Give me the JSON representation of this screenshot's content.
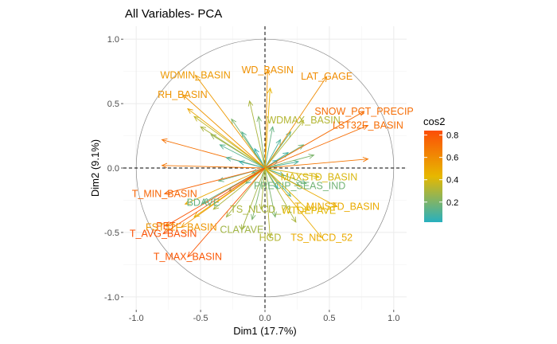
{
  "chart_data": {
    "type": "scatter",
    "title": "All Variables- PCA",
    "xlabel": "Dim1 (17.7%)",
    "ylabel": "Dim2 (9.1%)",
    "xlim": [
      -1.1,
      1.1
    ],
    "ylim": [
      -1.1,
      1.1
    ],
    "x_ticks": [
      "-1.0",
      "-0.5",
      "0.0",
      "0.5",
      "1.0"
    ],
    "y_ticks": [
      "-1.0",
      "-0.5",
      "0.0",
      "0.5",
      "1.0"
    ],
    "grid": true,
    "legend_position": "right",
    "legend": {
      "title": "cos2",
      "ticks": [
        "0.2",
        "0.4",
        "0.6",
        "0.8"
      ],
      "low_color": "#27B0BF",
      "mid_color": "#E7B800",
      "high_color": "#FC4E07"
    },
    "labeled_variables": [
      {
        "name": "WD_BASIN",
        "x": 0.02,
        "y": 0.76,
        "cos2": 0.58
      },
      {
        "name": "WDMIN_BASIN",
        "x": -0.54,
        "y": 0.72,
        "cos2": 0.55
      },
      {
        "name": "LAT_GAGE",
        "x": 0.48,
        "y": 0.71,
        "cos2": 0.6
      },
      {
        "name": "RH_BASIN",
        "x": -0.64,
        "y": 0.57,
        "cos2": 0.57
      },
      {
        "name": "SNOW_PCT_PRECIP",
        "x": 0.77,
        "y": 0.44,
        "cos2": 0.72
      },
      {
        "name": "WDMAX_BASIN",
        "x": 0.3,
        "y": 0.37,
        "cos2": 0.32
      },
      {
        "name": "LST32F_BASIN",
        "x": 0.8,
        "y": 0.33,
        "cos2": 0.72
      },
      {
        "name": "MAXSTD_BASIN",
        "x": 0.42,
        "y": -0.07,
        "cos2": 0.4
      },
      {
        "name": "T_MIN_BASIN",
        "x": -0.78,
        "y": -0.2,
        "cos2": 0.75
      },
      {
        "name": "PRECIP_SEAS_IND",
        "x": 0.27,
        "y": -0.14,
        "cos2": 0.18
      },
      {
        "name": "BDAVE",
        "x": -0.48,
        "y": -0.27,
        "cos2": 0.15
      },
      {
        "name": "T_MINSTD_BASIN",
        "x": 0.56,
        "y": -0.3,
        "cos2": 0.48
      },
      {
        "name": "TS_NLCD_71",
        "x": -0.03,
        "y": -0.32,
        "cos2": 0.3
      },
      {
        "name": "WTDEPAVE",
        "x": 0.34,
        "y": -0.33,
        "cos2": 0.42
      },
      {
        "name": "PET",
        "x": -0.77,
        "y": -0.45,
        "cos2": 0.81
      },
      {
        "name": "FST32F_BASIN",
        "x": -0.65,
        "y": -0.46,
        "cos2": 0.56
      },
      {
        "name": "T_AVG_BASIN",
        "x": -0.79,
        "y": -0.51,
        "cos2": 0.82
      },
      {
        "name": "CLAYAVE",
        "x": -0.18,
        "y": -0.48,
        "cos2": 0.28
      },
      {
        "name": "HGD",
        "x": 0.04,
        "y": -0.54,
        "cos2": 0.32
      },
      {
        "name": "TS_NLCD_52",
        "x": 0.44,
        "y": -0.54,
        "cos2": 0.48
      },
      {
        "name": "T_MAX_BASIN",
        "x": -0.6,
        "y": -0.69,
        "cos2": 0.8
      }
    ],
    "unlabeled_variables": [
      {
        "x": -0.8,
        "y": 0.22,
        "cos2": 0.7
      },
      {
        "x": -0.8,
        "y": 0.02,
        "cos2": 0.68
      },
      {
        "x": 0.8,
        "y": 0.07,
        "cos2": 0.68
      },
      {
        "x": -0.6,
        "y": 0.46,
        "cos2": 0.5
      },
      {
        "x": -0.55,
        "y": 0.4,
        "cos2": 0.35
      },
      {
        "x": -0.5,
        "y": 0.32,
        "cos2": 0.3
      },
      {
        "x": -0.42,
        "y": 0.26,
        "cos2": 0.25
      },
      {
        "x": -0.35,
        "y": 0.18,
        "cos2": 0.12
      },
      {
        "x": -0.26,
        "y": 0.38,
        "cos2": 0.2
      },
      {
        "x": -0.18,
        "y": 0.28,
        "cos2": 0.12
      },
      {
        "x": -0.12,
        "y": 0.52,
        "cos2": 0.3
      },
      {
        "x": -0.08,
        "y": 0.15,
        "cos2": 0.05
      },
      {
        "x": -0.3,
        "y": 0.08,
        "cos2": 0.1
      },
      {
        "x": -0.2,
        "y": 0.05,
        "cos2": 0.06
      },
      {
        "x": -0.1,
        "y": -0.04,
        "cos2": 0.04
      },
      {
        "x": 0.06,
        "y": 0.32,
        "cos2": 0.15
      },
      {
        "x": 0.12,
        "y": 0.22,
        "cos2": 0.1
      },
      {
        "x": 0.18,
        "y": 0.12,
        "cos2": 0.08
      },
      {
        "x": 0.2,
        "y": 0.28,
        "cos2": 0.14
      },
      {
        "x": 0.1,
        "y": 0.06,
        "cos2": 0.04
      },
      {
        "x": 0.26,
        "y": 0.05,
        "cos2": 0.1
      },
      {
        "x": 0.3,
        "y": 0.18,
        "cos2": 0.18
      },
      {
        "x": 0.38,
        "y": 0.1,
        "cos2": 0.2
      },
      {
        "x": 0.15,
        "y": -0.06,
        "cos2": 0.06
      },
      {
        "x": 0.32,
        "y": -0.12,
        "cos2": 0.15
      },
      {
        "x": 0.2,
        "y": -0.22,
        "cos2": 0.12
      },
      {
        "x": 0.1,
        "y": -0.16,
        "cos2": 0.05
      },
      {
        "x": -0.15,
        "y": -0.12,
        "cos2": 0.05
      },
      {
        "x": -0.28,
        "y": -0.18,
        "cos2": 0.12
      },
      {
        "x": -0.36,
        "y": -0.1,
        "cos2": 0.15
      },
      {
        "x": -0.4,
        "y": -0.32,
        "cos2": 0.3
      },
      {
        "x": -0.3,
        "y": -0.38,
        "cos2": 0.28
      },
      {
        "x": -0.1,
        "y": -0.4,
        "cos2": 0.2
      },
      {
        "x": 0.08,
        "y": -0.38,
        "cos2": 0.2
      },
      {
        "x": 0.24,
        "y": -0.42,
        "cos2": 0.3
      },
      {
        "x": -0.55,
        "y": -0.38,
        "cos2": 0.45
      },
      {
        "x": -0.62,
        "y": -0.28,
        "cos2": 0.5
      },
      {
        "x": -0.05,
        "y": 0.4,
        "cos2": 0.2
      },
      {
        "x": 0.04,
        "y": 0.62,
        "cos2": 0.45
      }
    ]
  }
}
